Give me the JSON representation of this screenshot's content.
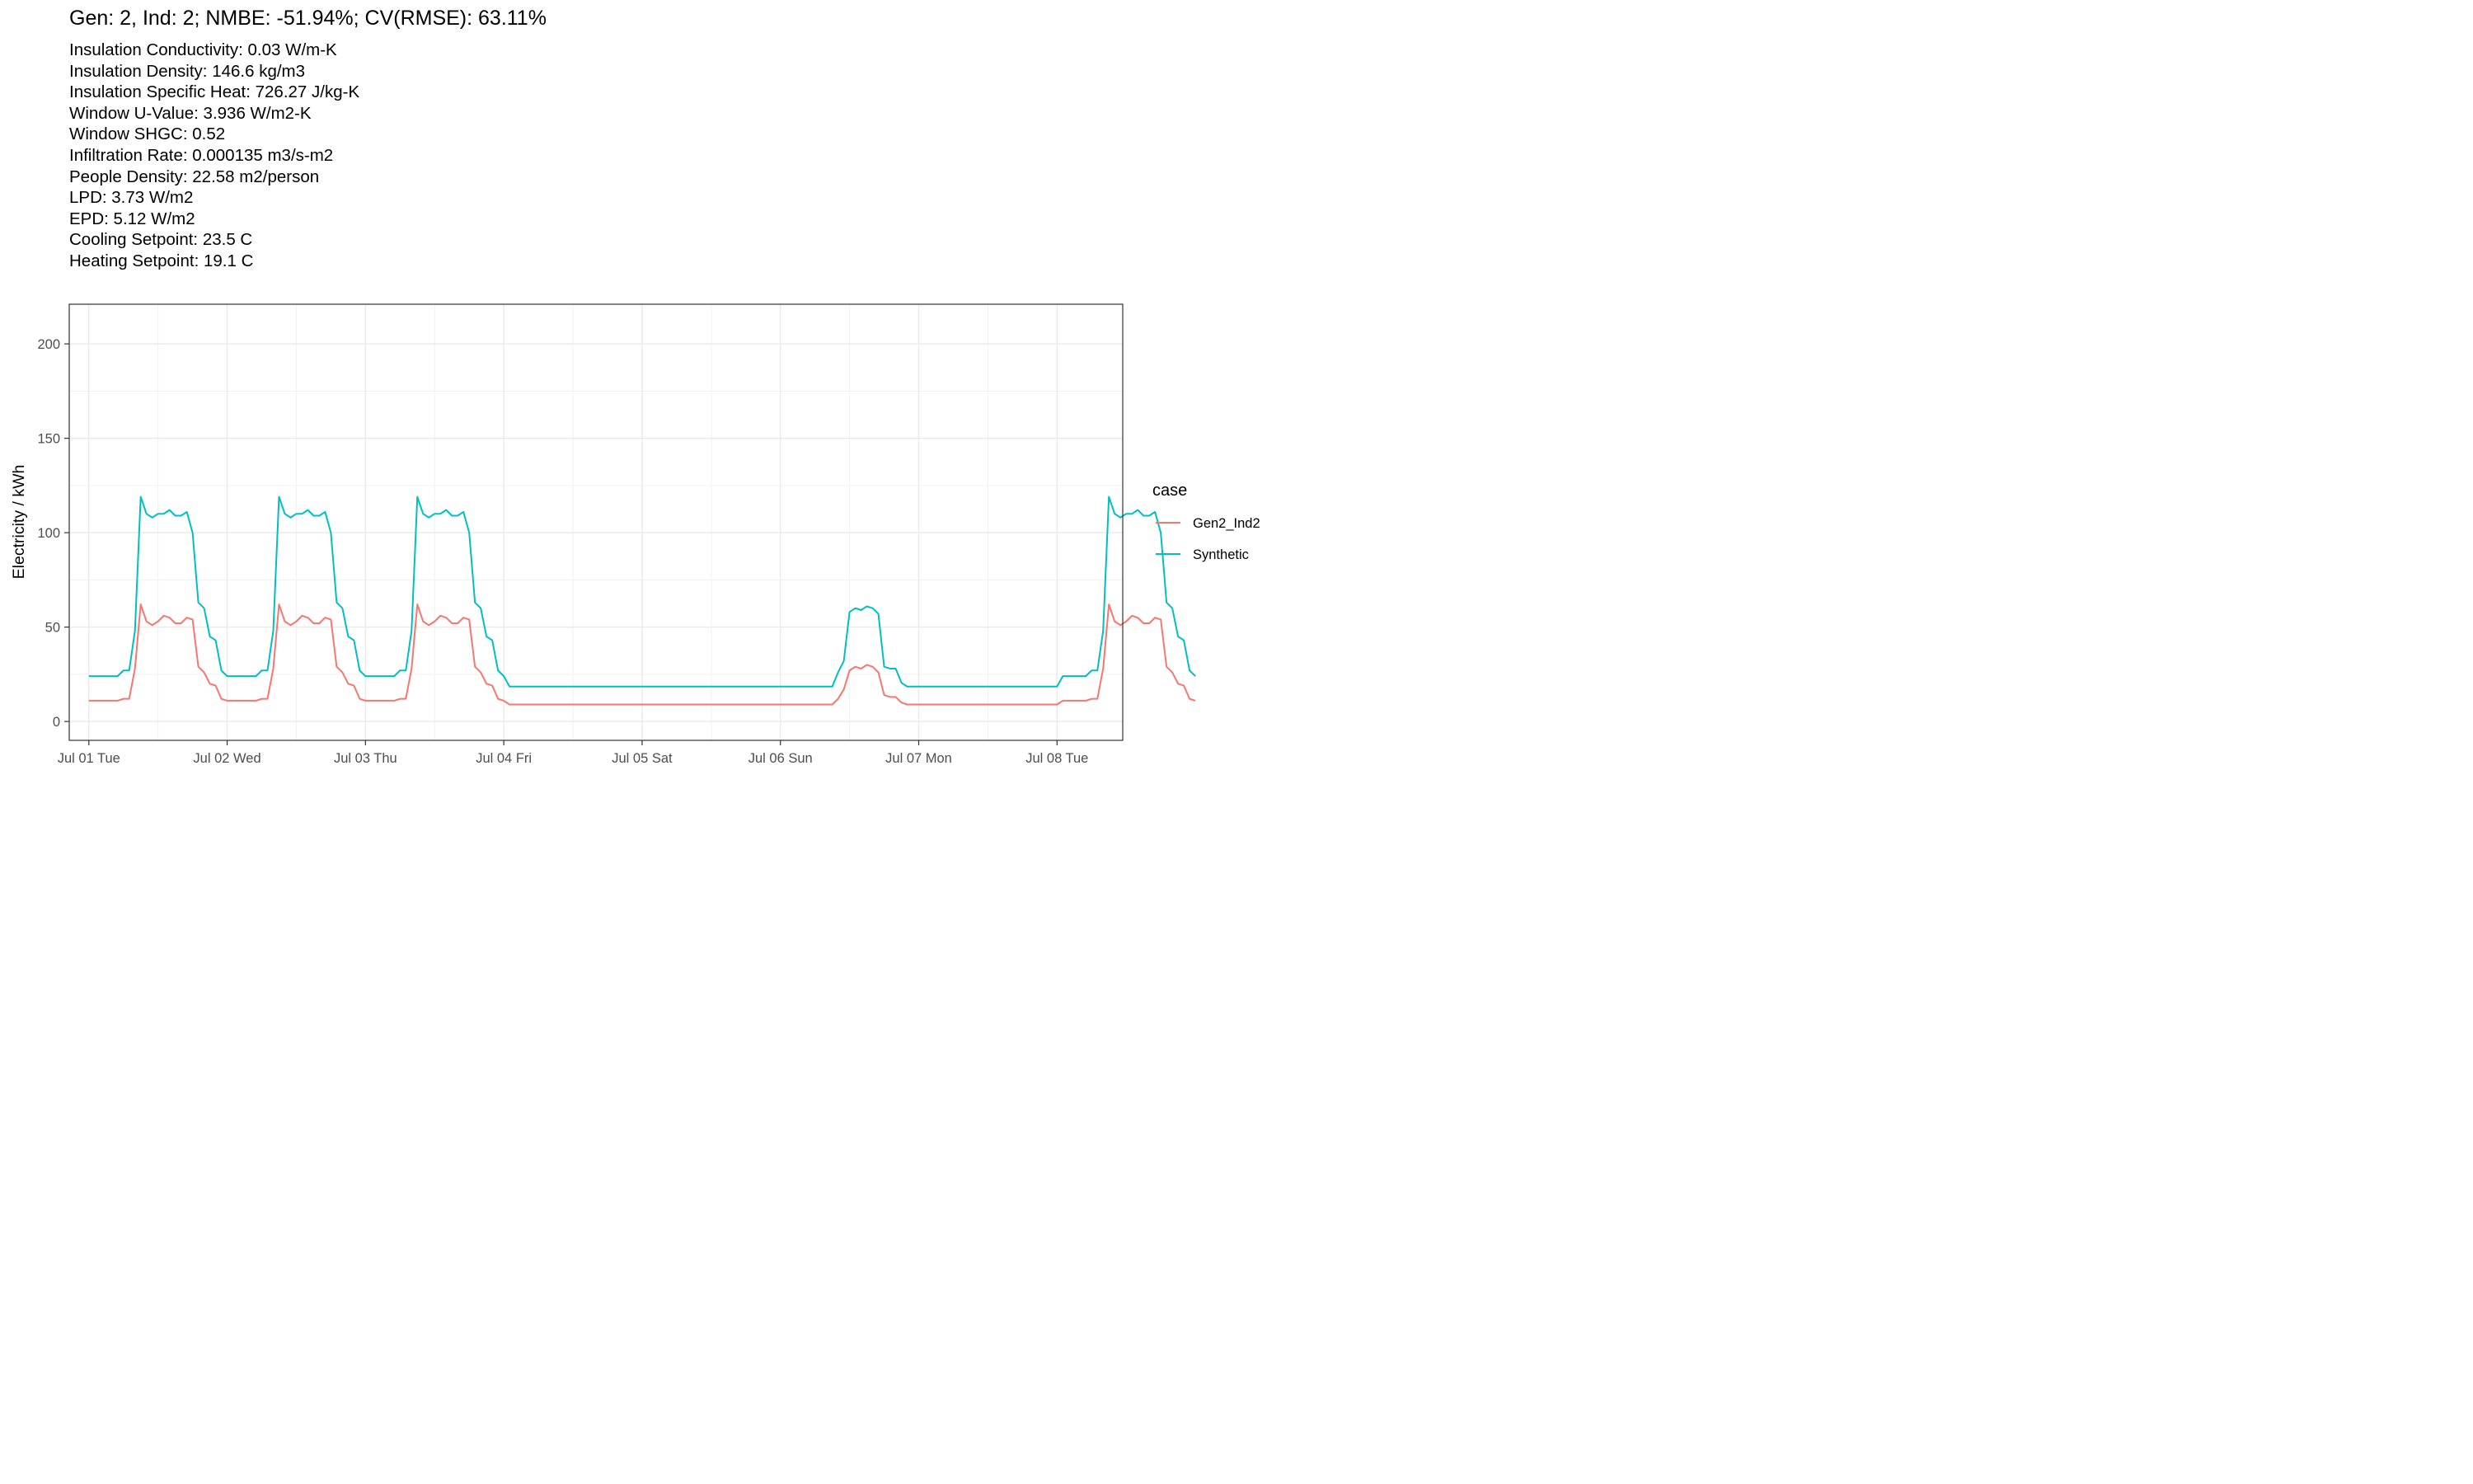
{
  "title": "Gen: 2, Ind: 2; NMBE: -51.94%; CV(RMSE): 63.11%",
  "subtitle": [
    "Insulation Conductivity: 0.03 W/m-K",
    "Insulation Density: 146.6 kg/m3",
    "Insulation Specific Heat: 726.27 J/kg-K",
    "Window U-Value: 3.936 W/m2-K",
    "Window SHGC: 0.52",
    "Infiltration Rate: 0.000135 m3/s-m2",
    "People Density: 22.58 m2/person",
    "LPD: 3.73 W/m2",
    "EPD: 5.12 W/m2",
    "Cooling Setpoint: 23.5 C",
    "Heating Setpoint: 19.1 C"
  ],
  "colors": {
    "Gen2_Ind2": "#F8766D",
    "Synthetic": "#00BFC4"
  },
  "chart_data": {
    "type": "line",
    "xlabel": "",
    "ylabel": "Electricity / kWh",
    "x_unit": "hour from 2014-07-01 00:00",
    "xlim_hours": [
      -3.4,
      179.4
    ],
    "ylim": [
      -10,
      221
    ],
    "yticks": [
      0,
      50,
      100,
      150,
      200
    ],
    "xticks": [
      {
        "hour": 0,
        "label": "Jul 01 Tue"
      },
      {
        "hour": 24,
        "label": "Jul 02 Wed"
      },
      {
        "hour": 48,
        "label": "Jul 03 Thu"
      },
      {
        "hour": 72,
        "label": "Jul 04 Fri"
      },
      {
        "hour": 96,
        "label": "Jul 05 Sat"
      },
      {
        "hour": 120,
        "label": "Jul 06 Sun"
      },
      {
        "hour": 144,
        "label": "Jul 07 Mon"
      },
      {
        "hour": 168,
        "label": "Jul 08 Tue"
      }
    ],
    "grid": true,
    "legend": {
      "title": "case",
      "position": "right"
    },
    "series": [
      {
        "name": "Gen2_Ind2",
        "x_start_hour": 0,
        "x_step_hours": 1,
        "values": [
          11,
          11,
          11,
          11,
          11,
          11,
          12,
          12,
          28,
          62,
          53,
          51,
          53,
          56,
          55,
          52,
          52,
          55,
          54,
          29,
          26,
          20,
          19,
          12,
          11,
          11,
          11,
          11,
          11,
          11,
          12,
          12,
          28,
          62,
          53,
          51,
          53,
          56,
          55,
          52,
          52,
          55,
          54,
          29,
          26,
          20,
          19,
          12,
          11,
          11,
          11,
          11,
          11,
          11,
          12,
          12,
          28,
          62,
          53,
          51,
          53,
          56,
          55,
          52,
          52,
          55,
          54,
          29,
          26,
          20,
          19,
          12,
          11,
          9,
          9,
          9,
          9,
          9,
          9,
          9,
          9,
          9,
          9,
          9,
          9,
          9,
          9,
          9,
          9,
          9,
          9,
          9,
          9,
          9,
          9,
          9,
          9,
          9,
          9,
          9,
          9,
          9,
          9,
          9,
          9,
          9,
          9,
          9,
          9,
          9,
          9,
          9,
          9,
          9,
          9,
          9,
          9,
          9,
          9,
          9,
          9,
          9,
          9,
          9,
          9,
          9,
          9,
          9,
          9,
          9,
          12,
          17,
          27,
          29,
          28,
          30,
          29,
          26,
          14,
          13,
          13,
          10,
          9,
          9,
          9,
          9,
          9,
          9,
          9,
          9,
          9,
          9,
          9,
          9,
          9,
          9,
          9,
          9,
          9,
          9,
          9,
          9,
          9,
          9,
          9,
          9,
          9,
          9,
          9,
          11,
          11,
          11,
          11,
          11,
          12,
          12,
          28,
          62,
          53,
          51,
          53,
          56,
          55,
          52,
          52,
          55,
          54,
          29,
          26,
          20,
          19,
          12,
          11
        ]
      },
      {
        "name": "Synthetic",
        "x_start_hour": 0,
        "x_step_hours": 1,
        "values": [
          24,
          24,
          24,
          24,
          24,
          24,
          27,
          27,
          48,
          119,
          110,
          108,
          110,
          110,
          112,
          109,
          109,
          111,
          100,
          63,
          60,
          45,
          43,
          27,
          24,
          24,
          24,
          24,
          24,
          24,
          27,
          27,
          48,
          119,
          110,
          108,
          110,
          110,
          112,
          109,
          109,
          111,
          100,
          63,
          60,
          45,
          43,
          27,
          24,
          24,
          24,
          24,
          24,
          24,
          27,
          27,
          48,
          119,
          110,
          108,
          110,
          110,
          112,
          109,
          109,
          111,
          100,
          63,
          60,
          45,
          43,
          27,
          24,
          18.5,
          18.5,
          18.5,
          18.5,
          18.5,
          18.5,
          18.5,
          18.5,
          18.5,
          18.5,
          18.5,
          18.5,
          18.5,
          18.5,
          18.5,
          18.5,
          18.5,
          18.5,
          18.5,
          18.5,
          18.5,
          18.5,
          18.5,
          18.5,
          18.5,
          18.5,
          18.5,
          18.5,
          18.5,
          18.5,
          18.5,
          18.5,
          18.5,
          18.5,
          18.5,
          18.5,
          18.5,
          18.5,
          18.5,
          18.5,
          18.5,
          18.5,
          18.5,
          18.5,
          18.5,
          18.5,
          18.5,
          18.5,
          18.5,
          18.5,
          18.5,
          18.5,
          18.5,
          18.5,
          18.5,
          18.5,
          18.5,
          26,
          32,
          58,
          60,
          59,
          61,
          60,
          57,
          29,
          28,
          28,
          20.5,
          18.5,
          18.5,
          18.5,
          18.5,
          18.5,
          18.5,
          18.5,
          18.5,
          18.5,
          18.5,
          18.5,
          18.5,
          18.5,
          18.5,
          18.5,
          18.5,
          18.5,
          18.5,
          18.5,
          18.5,
          18.5,
          18.5,
          18.5,
          18.5,
          18.5,
          18.5,
          18.5,
          24,
          24,
          24,
          24,
          24,
          27,
          27,
          48,
          119,
          110,
          108,
          110,
          110,
          112,
          109,
          109,
          111,
          100,
          63,
          60,
          45,
          43,
          27,
          24
        ]
      }
    ]
  }
}
